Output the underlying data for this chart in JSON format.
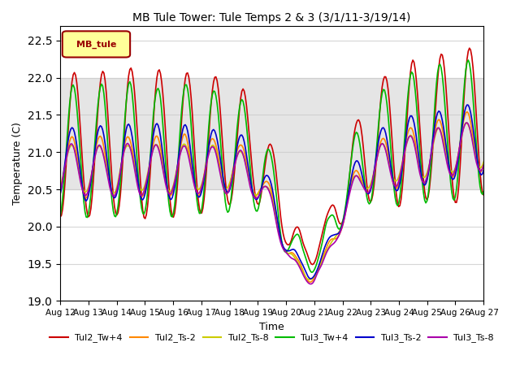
{
  "title": "MB Tule Tower: Tule Temps 2 & 3 (3/1/11-3/19/14)",
  "xlabel": "Time",
  "ylabel": "Temperature (C)",
  "ylim": [
    19.0,
    22.7
  ],
  "yticks": [
    19.0,
    19.5,
    20.0,
    20.5,
    21.0,
    21.5,
    22.0,
    22.5
  ],
  "xtick_labels": [
    "Aug 12",
    "Aug 13",
    "Aug 14",
    "Aug 15",
    "Aug 16",
    "Aug 17",
    "Aug 18",
    "Aug 19",
    "Aug 20",
    "Aug 21",
    "Aug 22",
    "Aug 23",
    "Aug 24",
    "Aug 25",
    "Aug 26",
    "Aug 27"
  ],
  "shading": {
    "ymin": 20.5,
    "ymax": 22.0,
    "color": "#cccccc",
    "alpha": 0.5
  },
  "legend_label": "MB_tule",
  "legend_bg": "#ffff99",
  "legend_border": "#990000",
  "series": {
    "Tul2_Tw+4": {
      "color": "#cc0000",
      "lw": 1.2
    },
    "Tul2_Ts-2": {
      "color": "#ff8800",
      "lw": 1.2
    },
    "Tul2_Ts-8": {
      "color": "#cccc00",
      "lw": 1.2
    },
    "Tul3_Tw+4": {
      "color": "#00bb00",
      "lw": 1.2
    },
    "Tul3_Ts-2": {
      "color": "#0000cc",
      "lw": 1.2
    },
    "Tul3_Ts-8": {
      "color": "#aa00aa",
      "lw": 1.2
    }
  },
  "background_color": "#ffffff",
  "axes_bg": "#ffffff",
  "figsize": [
    6.4,
    4.8
  ],
  "dpi": 100
}
